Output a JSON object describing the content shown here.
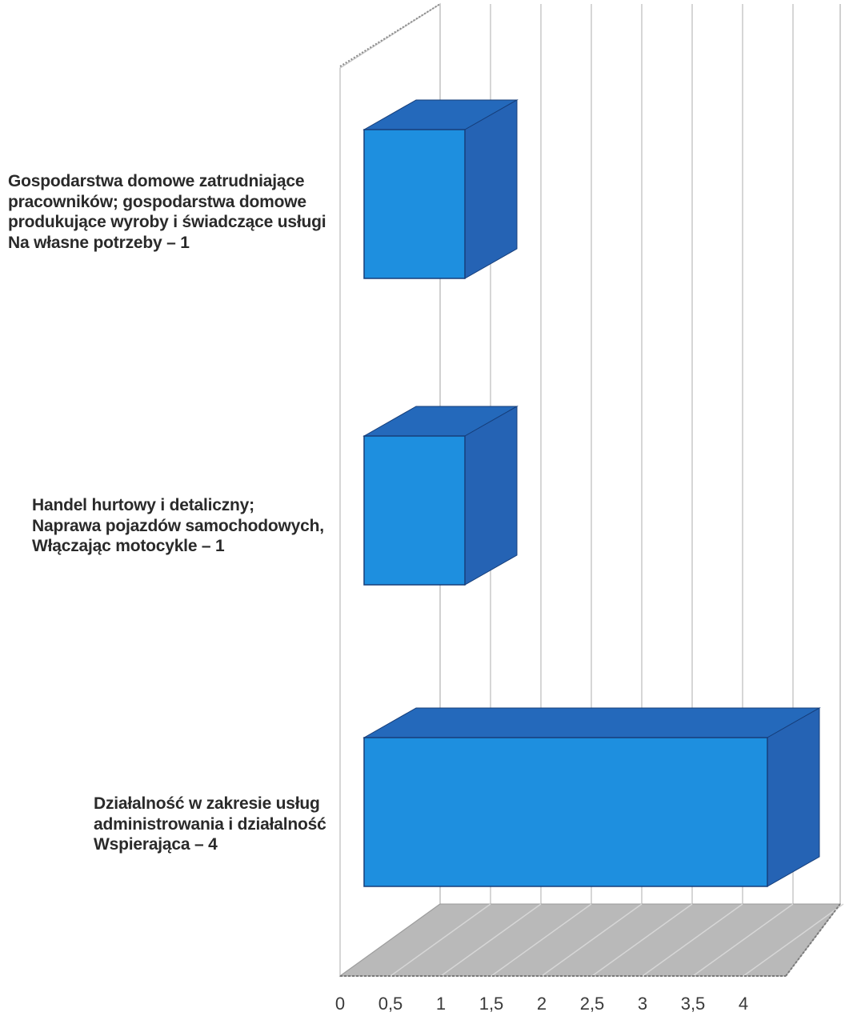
{
  "chart_data": {
    "type": "bar",
    "orientation": "horizontal",
    "style": "3d",
    "categories": [
      "Gospodarstwa domowe zatrudniające pracowników; gospodarstwa domowe produkujące wyroby i świadczące usługi Na własne potrzeby – 1",
      "Handel hurtowy i detaliczny; Naprawa pojazdów samochodowych, Włączając motocykle – 1",
      "Działalność w zakresie usług administrowania i działalność Wspierająca – 4"
    ],
    "category_lines": [
      [
        "Gospodarstwa domowe zatrudniające",
        "pracowników; gospodarstwa domowe",
        "produkujące wyroby i świadczące usługi",
        "Na własne potrzeby – 1"
      ],
      [
        "Handel hurtowy i detaliczny;",
        "Naprawa pojazdów samochodowych,",
        "Włączając motocykle – 1"
      ],
      [
        "Działalność w zakresie usług",
        "administrowania i działalność",
        "Wspierająca – 4"
      ]
    ],
    "values": [
      1,
      1,
      4
    ],
    "xlim": [
      0,
      4.5
    ],
    "xticks": [
      "0",
      "0,5",
      "1",
      "1,5",
      "2",
      "2,5",
      "3",
      "3,5",
      "4"
    ],
    "grid": true,
    "legend": "none",
    "title": "",
    "xlabel": "",
    "ylabel": "",
    "colors": {
      "bar_front": "#1e8fdf",
      "bar_side": "#2563b4",
      "bar_top": "#2469bb",
      "bar_edge": "#163e7a",
      "floor": "#b9b9b9",
      "floor_line": "#9a9a9a",
      "grid": "#c9c9c9",
      "tick_text": "#3a3a3a"
    }
  }
}
